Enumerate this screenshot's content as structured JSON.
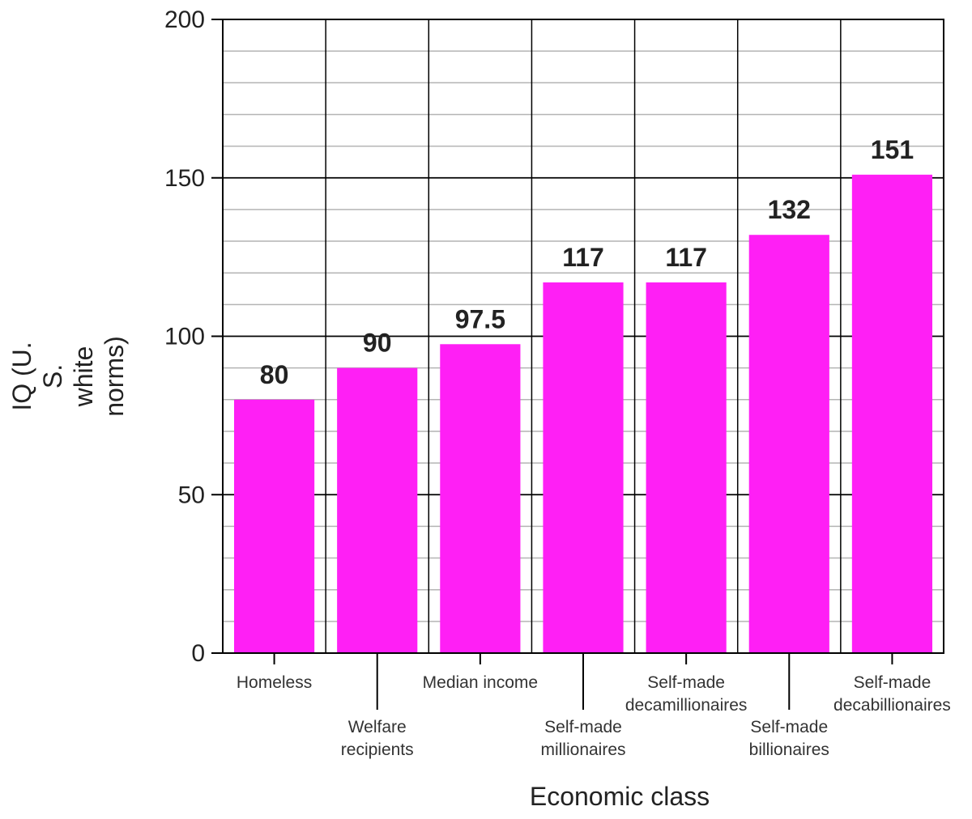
{
  "chart_data": {
    "type": "bar",
    "categories": [
      [
        "Homeless"
      ],
      [
        "Welfare",
        "recipients"
      ],
      [
        "Median income"
      ],
      [
        "Self-made",
        "millionaires"
      ],
      [
        "Self-made",
        "decamillionaires"
      ],
      [
        "Self-made",
        "billionaires"
      ],
      [
        "Self-made",
        "decabillionaires"
      ]
    ],
    "values": [
      80,
      90,
      97.5,
      117,
      117,
      132,
      151
    ],
    "value_labels": [
      "80",
      "90",
      "97.5",
      "117",
      "117",
      "132",
      "151"
    ],
    "title": "",
    "xlabel": "Economic class",
    "ylabel": [
      "IQ (U.",
      "S.",
      "white",
      "norms)"
    ],
    "ylim": [
      0,
      200
    ],
    "yticks": [
      0,
      50,
      100,
      150,
      200
    ],
    "minor_step": 10,
    "grid": true,
    "legend": "none",
    "colors": {
      "bar": "#ff1ff5",
      "grid_major": "#000000",
      "grid_minor": "#b4b4b4",
      "axis": "#000000"
    }
  }
}
